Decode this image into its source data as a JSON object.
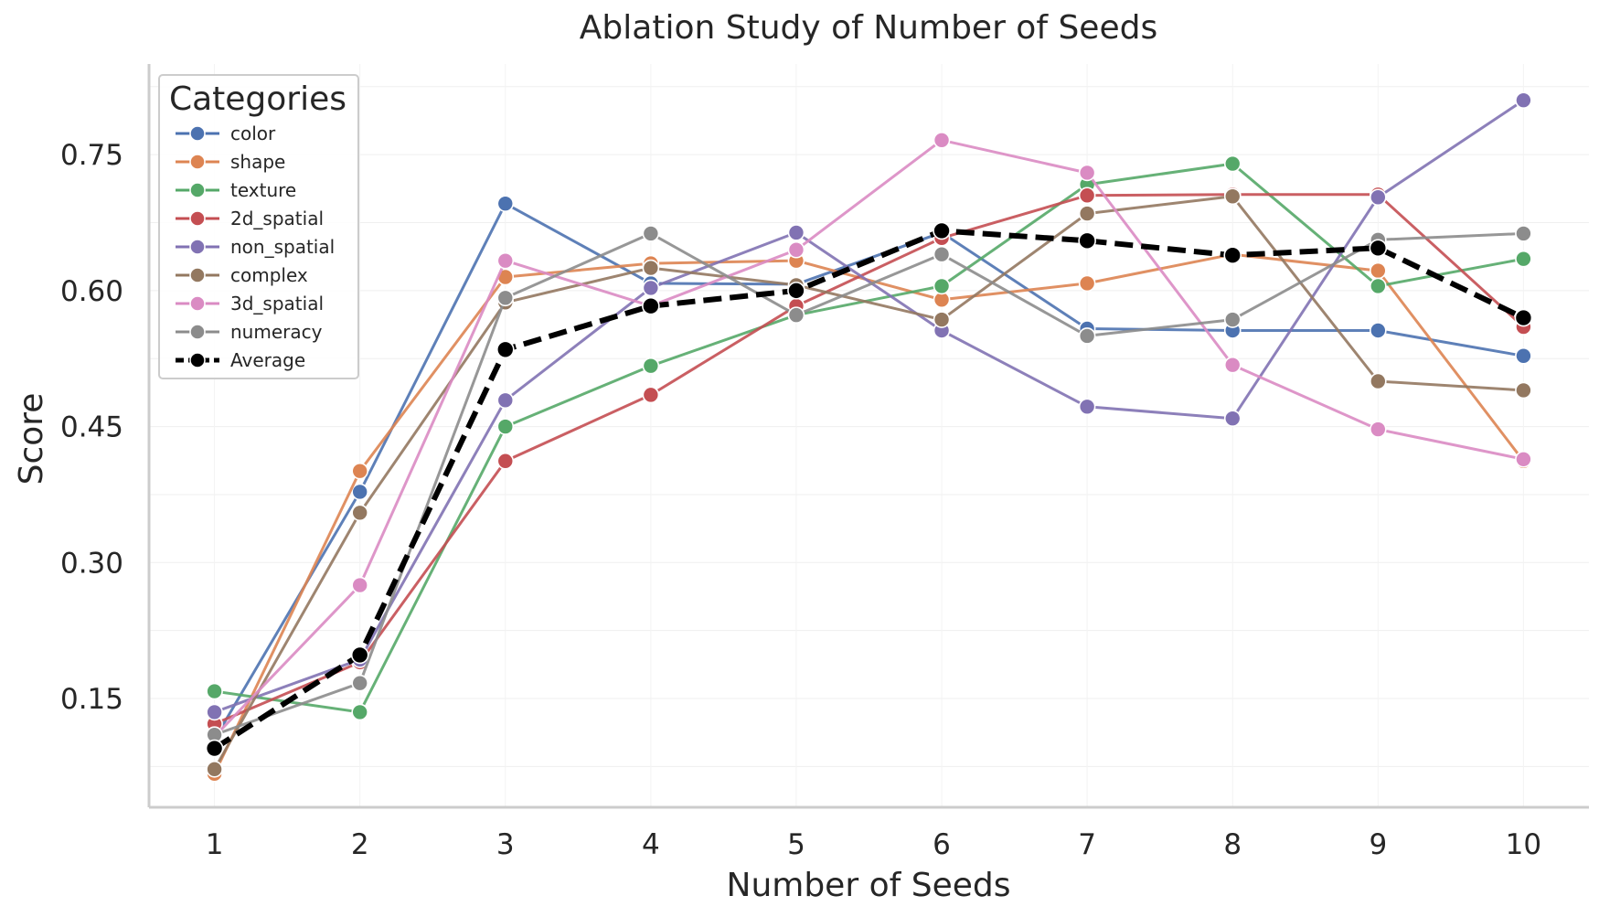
{
  "chart_data": {
    "type": "line",
    "title": "Ablation Study of Number of Seeds",
    "xlabel": "Number of Seeds",
    "ylabel": "Score",
    "x": [
      1,
      2,
      3,
      4,
      5,
      6,
      7,
      8,
      9,
      10
    ],
    "xlim": [
      0.55,
      10.45
    ],
    "ylim": [
      0.03,
      0.85
    ],
    "yticks": [
      0.15,
      0.3,
      0.45,
      0.6,
      0.75
    ],
    "ytick_labels": [
      "0.15",
      "0.30",
      "0.45",
      "0.60",
      "0.75"
    ],
    "xtick_labels": [
      "1",
      "2",
      "3",
      "4",
      "5",
      "6",
      "7",
      "8",
      "9",
      "10"
    ],
    "grid": true,
    "legend": {
      "title": "Categories",
      "placement": "top-left"
    },
    "series": [
      {
        "name": "color",
        "color": "#4c72b0",
        "values": [
          0.105,
          0.378,
          0.696,
          0.608,
          0.607,
          0.664,
          0.558,
          0.556,
          0.556,
          0.528
        ]
      },
      {
        "name": "shape",
        "color": "#dd8452",
        "values": [
          0.067,
          0.401,
          0.615,
          0.63,
          0.633,
          0.59,
          0.608,
          0.64,
          0.622,
          0.412
        ]
      },
      {
        "name": "texture",
        "color": "#55a868",
        "values": [
          0.158,
          0.135,
          0.45,
          0.517,
          0.573,
          0.605,
          0.717,
          0.74,
          0.605,
          0.635
        ]
      },
      {
        "name": "2d_spatial",
        "color": "#c44e52",
        "values": [
          0.122,
          0.19,
          0.412,
          0.485,
          0.583,
          0.658,
          0.705,
          0.706,
          0.706,
          0.56
        ]
      },
      {
        "name": "non_spatial",
        "color": "#8172b3",
        "values": [
          0.135,
          0.193,
          0.479,
          0.603,
          0.664,
          0.556,
          0.472,
          0.459,
          0.703,
          0.81
        ]
      },
      {
        "name": "complex",
        "color": "#937860",
        "values": [
          0.072,
          0.355,
          0.587,
          0.625,
          0.606,
          0.568,
          0.685,
          0.704,
          0.5,
          0.49
        ]
      },
      {
        "name": "3d_spatial",
        "color": "#da8bc3",
        "values": [
          0.108,
          0.275,
          0.633,
          0.583,
          0.645,
          0.766,
          0.73,
          0.518,
          0.447,
          0.414
        ]
      },
      {
        "name": "numeracy",
        "color": "#8c8c8c",
        "values": [
          0.11,
          0.167,
          0.592,
          0.663,
          0.573,
          0.64,
          0.55,
          0.568,
          0.656,
          0.663
        ]
      },
      {
        "name": "Average",
        "color": "#000000",
        "dashed": true,
        "values": [
          0.095,
          0.198,
          0.535,
          0.583,
          0.6,
          0.666,
          0.655,
          0.639,
          0.647,
          0.57
        ]
      }
    ]
  }
}
